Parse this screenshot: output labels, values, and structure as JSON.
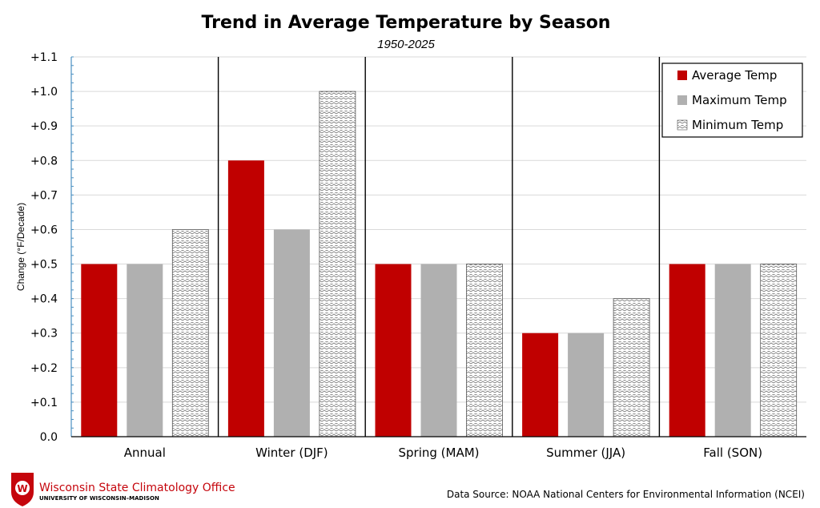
{
  "chart_data": {
    "type": "bar",
    "title": "Trend in Average Temperature by Season",
    "subtitle": "1950-2025",
    "ylabel": "Change (°F/Decade)",
    "xlabel": "",
    "ylim": [
      0.0,
      1.1
    ],
    "yticks": [
      0.0,
      0.1,
      0.2,
      0.3,
      0.4,
      0.5,
      0.6,
      0.7,
      0.8,
      0.9,
      1.0,
      1.1
    ],
    "ytick_labels": [
      "0.0",
      "+0.1",
      "+0.2",
      "+0.3",
      "+0.4",
      "+0.5",
      "+0.6",
      "+0.7",
      "+0.8",
      "+0.9",
      "+1.0",
      "+1.1"
    ],
    "categories": [
      "Annual",
      "Winter (DJF)",
      "Spring (MAM)",
      "Summer (JJA)",
      "Fall (SON)"
    ],
    "series": [
      {
        "name": "Average Temp",
        "values": [
          0.5,
          0.8,
          0.5,
          0.3,
          0.5
        ],
        "color": "#c00000",
        "pattern": "solid"
      },
      {
        "name": "Maximum Temp",
        "values": [
          0.5,
          0.6,
          0.5,
          0.3,
          0.5
        ],
        "color": "#b0b0b0",
        "pattern": "solid"
      },
      {
        "name": "Minimum Temp",
        "values": [
          0.6,
          1.0,
          0.5,
          0.4,
          0.5
        ],
        "color": "#ffffff",
        "pattern": "hatched"
      }
    ],
    "grid": true,
    "legend_position": "top-right"
  },
  "footer": {
    "org_name": "Wisconsin State Climatology Office",
    "org_sub": "UNIVERSITY OF WISCONSIN–MADISON",
    "crest_letter": "W",
    "source": "Data Source: NOAA National Centers for Environmental Information (NCEI)"
  },
  "colors": {
    "brand_red": "#c5050c",
    "grid": "#d9d9d9",
    "axis": "#000000"
  }
}
